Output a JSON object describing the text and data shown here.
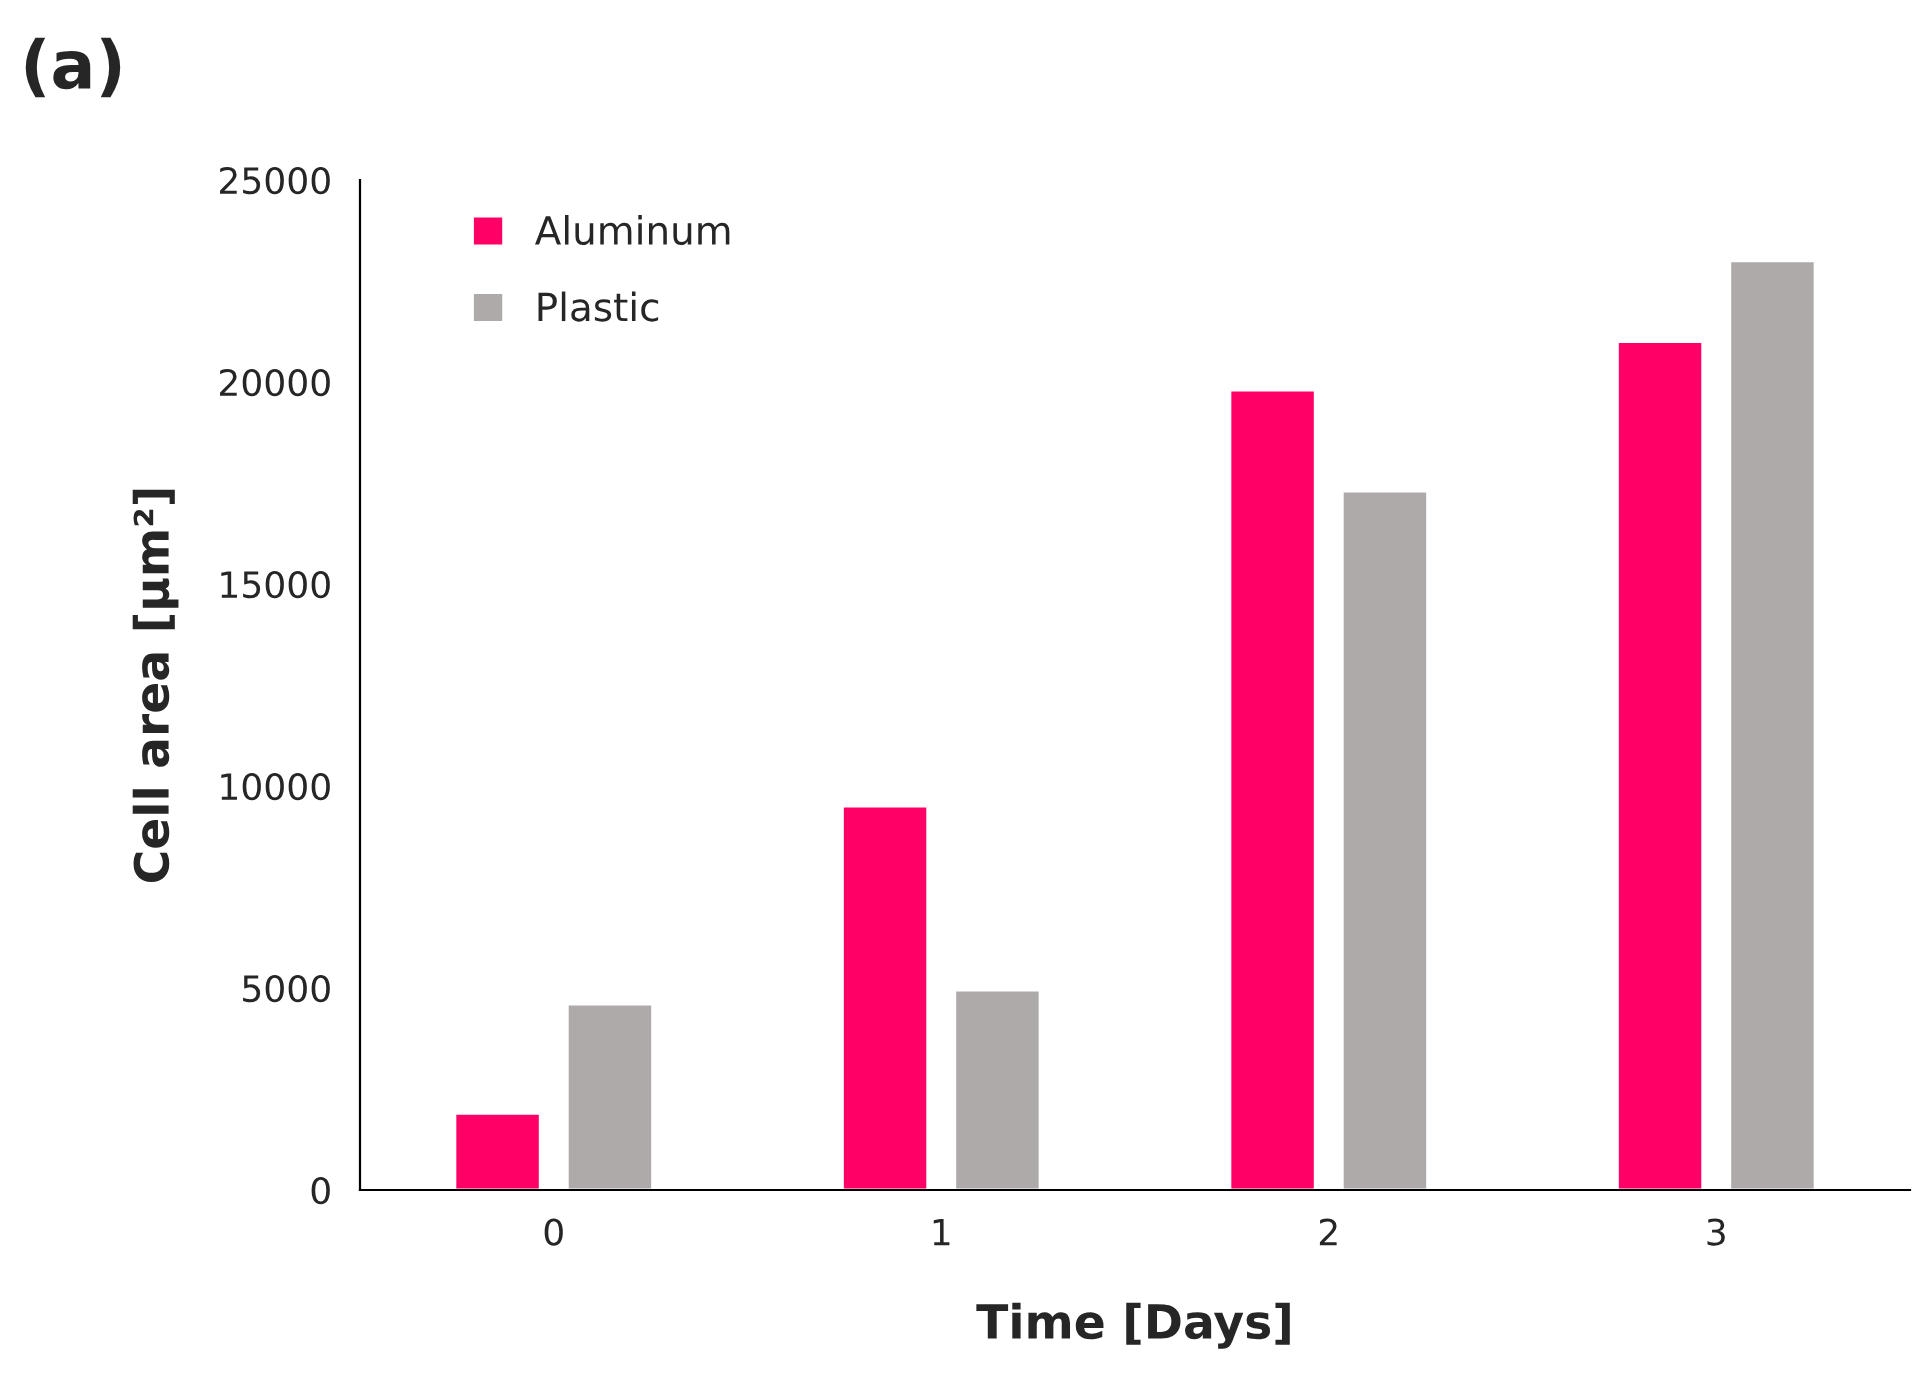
{
  "chart_data": {
    "type": "bar",
    "title": "(a)",
    "xlabel": "Time [Days]",
    "ylabel": "Cell area [μm²]",
    "categories": [
      "0",
      "1",
      "2",
      "3"
    ],
    "series": [
      {
        "name": "Aluminum",
        "color": "#ff0066",
        "values": [
          1900,
          9500,
          19800,
          21000
        ]
      },
      {
        "name": "Plastic",
        "color": "#aeaaaa",
        "values": [
          4600,
          4950,
          17300,
          23000
        ]
      }
    ],
    "ylim": [
      0,
      25000
    ],
    "yticks": [
      0,
      5000,
      10000,
      15000,
      20000,
      25000
    ],
    "grid": false,
    "legend": "top left"
  }
}
